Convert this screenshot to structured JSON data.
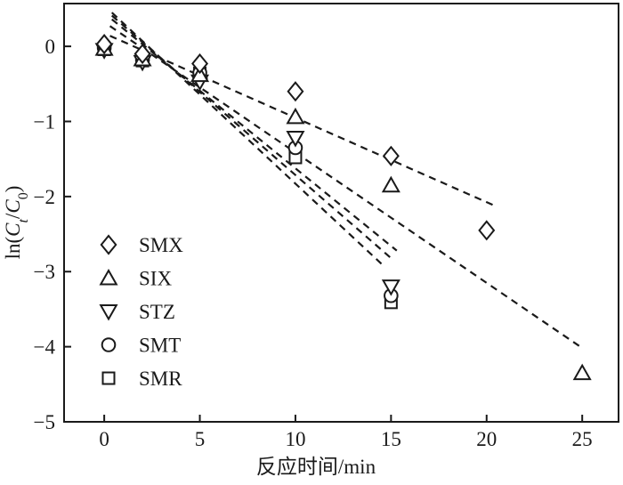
{
  "chart_data": {
    "type": "scatter",
    "title": "",
    "xlabel": "反应时间/min",
    "ylabel": "ln(Ct/C0)",
    "ylabel_parts": [
      {
        "text": "ln(",
        "style": "normal"
      },
      {
        "text": "C",
        "style": "italic"
      },
      {
        "text": "t",
        "style": "italic-sub"
      },
      {
        "text": "/",
        "style": "normal"
      },
      {
        "text": "C",
        "style": "italic"
      },
      {
        "text": "0",
        "style": "sub"
      },
      {
        "text": ")",
        "style": "normal"
      }
    ],
    "xlim": [
      -2.1,
      26.9
    ],
    "ylim": [
      -5,
      0.57
    ],
    "xticks": [
      0,
      5,
      10,
      15,
      20,
      25
    ],
    "yticks": [
      0,
      -1,
      -2,
      -3,
      -4,
      -5
    ],
    "grid": false,
    "legend_position": "inside-lower-left",
    "line_style": "dashed",
    "colors": {
      "stroke": "#1a1a1a",
      "marker_fill": "#ffffff",
      "background": "#ffffff"
    },
    "series": [
      {
        "name": "SMX",
        "marker": "diamond",
        "points": [
          [
            0,
            0.03
          ],
          [
            2,
            -0.1
          ],
          [
            5,
            -0.23
          ],
          [
            10,
            -0.6
          ],
          [
            15,
            -1.46
          ],
          [
            20,
            -2.45
          ]
        ],
        "fit_line": [
          [
            0.3,
            0.14
          ],
          [
            20.4,
            -2.12
          ]
        ]
      },
      {
        "name": "SIX",
        "marker": "triangle-up",
        "points": [
          [
            0,
            -0.03
          ],
          [
            2,
            -0.17
          ],
          [
            5,
            -0.38
          ],
          [
            10,
            -0.94
          ],
          [
            15,
            -1.85
          ],
          [
            25,
            -4.35
          ]
        ],
        "fit_line": [
          [
            0.3,
            0.27
          ],
          [
            24.9,
            -4.0
          ]
        ]
      },
      {
        "name": "STZ",
        "marker": "triangle-down",
        "points": [
          [
            0,
            -0.05
          ],
          [
            2,
            -0.21
          ],
          [
            5,
            -0.47
          ],
          [
            10,
            -1.22
          ],
          [
            15,
            -3.2
          ]
        ],
        "fit_line": [
          [
            0.4,
            0.36
          ],
          [
            15.3,
            -2.72
          ]
        ]
      },
      {
        "name": "SMT",
        "marker": "circle",
        "points": [
          [
            0,
            -0.02
          ],
          [
            2,
            -0.18
          ],
          [
            5,
            -0.35
          ],
          [
            10,
            -1.35
          ],
          [
            15,
            -3.32
          ]
        ],
        "fit_line": [
          [
            0.4,
            0.41
          ],
          [
            15.0,
            -2.82
          ]
        ]
      },
      {
        "name": "SMR",
        "marker": "square",
        "points": [
          [
            0,
            -0.04
          ],
          [
            2,
            -0.19
          ],
          [
            5,
            -0.36
          ],
          [
            10,
            -1.48
          ],
          [
            15,
            -3.41
          ]
        ],
        "fit_line": [
          [
            0.4,
            0.45
          ],
          [
            14.6,
            -2.92
          ]
        ]
      }
    ],
    "legend": [
      {
        "label": "SMX",
        "marker": "diamond"
      },
      {
        "label": "SIX",
        "marker": "triangle-up"
      },
      {
        "label": "STZ",
        "marker": "triangle-down"
      },
      {
        "label": "SMT",
        "marker": "circle"
      },
      {
        "label": "SMR",
        "marker": "square"
      }
    ]
  }
}
